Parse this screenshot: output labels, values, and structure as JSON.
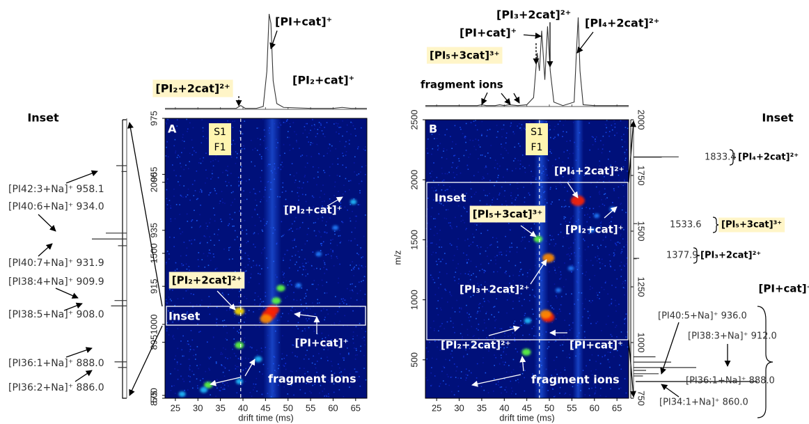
{
  "chart_data": [
    {
      "type": "heatmap",
      "x_label": "drift time (ms)",
      "xlim": [
        22.7,
        67.5
      ],
      "xticks": [
        25,
        30,
        35,
        40,
        45,
        50,
        55,
        60,
        65
      ],
      "ylim": [
        480,
        2450
      ],
      "yticks": [
        500,
        1000,
        1500,
        2000
      ],
      "y2lim": [
        875,
        975
      ],
      "y2ticks": [
        875,
        895,
        915,
        935,
        955,
        975
      ],
      "marker_x": 39.5,
      "spots": {
        "x": [
          39.2,
          45.8,
          46.6,
          45.1,
          47.4,
          48.4,
          39.2,
          43.4,
          39.2,
          32.3,
          31.3,
          26.5,
          64.5,
          56.8,
          52.3,
          60.5
        ],
        "y": [
          1093,
          1068,
          1102,
          1039,
          1166,
          1255,
          853,
          755,
          598,
          573,
          539,
          509,
          1862,
          1495,
          1274,
          1680
        ],
        "intensity": [
          0.6,
          1,
          0.9,
          0.8,
          0.5,
          0.45,
          0.5,
          0.35,
          0.3,
          0.45,
          0.35,
          0.3,
          0.25,
          0.2,
          0.2,
          0.2
        ]
      },
      "drift_trace": {
        "x": [
          22.7,
          30,
          36,
          38.5,
          39.5,
          40.5,
          43,
          44.5,
          45.3,
          45.8,
          46.2,
          46.7,
          47.5,
          49,
          55,
          60,
          62,
          64,
          67.5
        ],
        "values": [
          1,
          1,
          1,
          1,
          4,
          1,
          1,
          3,
          40,
          100,
          90,
          30,
          6,
          2,
          1,
          1,
          2,
          1,
          1
        ],
        "ylim": [
          0,
          100
        ]
      },
      "spectrum": {
        "mz": [
          958.1,
          956,
          934.0,
          931.9,
          929.5,
          909.9,
          908.0,
          888.0,
          886.0
        ],
        "values": [
          30,
          15,
          60,
          100,
          25,
          35,
          45,
          35,
          25
        ],
        "xlim": [
          0,
          100
        ]
      },
      "annotations": [
        {
          "text": "[PI₂+2cat]²⁺",
          "highlight": true
        },
        {
          "text": "[PI+cat]⁺"
        },
        {
          "text": "[PI₂+cat]⁺"
        },
        {
          "text": "A"
        },
        {
          "text": "S1"
        },
        {
          "text": "F1"
        },
        {
          "text": "Inset"
        },
        {
          "text": "[PI₂+cat]⁺"
        },
        {
          "text": "[PI₂+2cat]²⁺",
          "highlight": true
        },
        {
          "text": "[PI+cat]⁺"
        },
        {
          "text": "fragment ions"
        },
        {
          "text": "Inset"
        },
        {
          "text": "[PI42:3+Na]⁺ 958.1"
        },
        {
          "text": "[PI40:6+Na]⁺ 934.0"
        },
        {
          "text": "[PI40:7+Na]⁺ 931.9"
        },
        {
          "text": "[PI38:4+Na]⁺ 909.9"
        },
        {
          "text": "[PI38:5+Na]⁺ 908.0"
        },
        {
          "text": "[PI36:1+Na]⁺ 888.0"
        },
        {
          "text": "[PI36:2+Na]⁺ 886.0"
        }
      ]
    },
    {
      "type": "heatmap",
      "x_label": "drift time (ms)",
      "y_label": "m/z",
      "xlim": [
        22.5,
        67.6
      ],
      "xticks": [
        25,
        30,
        35,
        40,
        45,
        50,
        55,
        60,
        65
      ],
      "ylim": [
        180,
        2500
      ],
      "yticks": [
        500,
        1000,
        1500,
        2000,
        2500
      ],
      "y2lim": [
        750,
        2000
      ],
      "y2ticks": [
        750,
        1000,
        1250,
        1500,
        1750,
        2000
      ],
      "marker_x": 47.8,
      "spots": {
        "x": [
          56.3,
          47.5,
          49.8,
          49.7,
          49.2,
          45.2,
          44.9,
          64,
          59.4,
          54.8,
          52,
          60.5
        ],
        "y": [
          1826,
          1506,
          1349,
          855,
          880,
          826,
          564,
          1756,
          1581,
          1262,
          1080,
          1700
        ],
        "intensity": [
          1,
          0.45,
          0.8,
          0.9,
          0.75,
          0.3,
          0.5,
          0.2,
          0.2,
          0.2,
          0.15,
          0.15
        ]
      },
      "drift_trace": {
        "x": [
          22.5,
          30,
          34,
          35,
          36,
          38,
          39,
          40,
          41,
          43,
          45,
          46.5,
          47.3,
          47.8,
          48.3,
          49,
          49.6,
          50.2,
          51,
          53,
          55.5,
          56,
          56.4,
          56.8,
          57.5,
          60,
          67.6
        ],
        "values": [
          1,
          1,
          1,
          2,
          1,
          1,
          2,
          1,
          2,
          1,
          2,
          10,
          60,
          40,
          85,
          30,
          90,
          40,
          5,
          1,
          5,
          60,
          100,
          40,
          2,
          1,
          1
        ],
        "ylim": [
          0,
          100
        ]
      },
      "spectrum": {
        "mz": [
          1833.4,
          1832,
          1533.6,
          1377.9,
          1376,
          936.0,
          912.0,
          888.0,
          875,
          860.0,
          850
        ],
        "values": [
          72,
          45,
          6,
          9,
          5,
          35,
          60,
          100,
          20,
          40,
          15
        ],
        "xlim": [
          0,
          100
        ]
      },
      "annotations": [
        {
          "text": "[PI₃+2cat]²⁺"
        },
        {
          "text": "[PI+cat]⁺"
        },
        {
          "text": "[PI₄+2cat]²⁺"
        },
        {
          "text": "[PI₅+3cat]³⁺",
          "highlight": true
        },
        {
          "text": "fragment ions"
        },
        {
          "text": "B"
        },
        {
          "text": "S1"
        },
        {
          "text": "F1"
        },
        {
          "text": "Inset"
        },
        {
          "text": "[PI₄+2cat]²⁺"
        },
        {
          "text": "[PI₅+3cat]³⁺",
          "highlight": true
        },
        {
          "text": "[PI₂+cat]⁺"
        },
        {
          "text": "[PI₃+2cat]²⁺"
        },
        {
          "text": "[PI₂+2cat]²⁺"
        },
        {
          "text": "[PI+cat]⁺"
        },
        {
          "text": "fragment ions"
        },
        {
          "text": "Inset"
        },
        {
          "text": "1833.4"
        },
        {
          "text": "[PI₄+2cat]²⁺"
        },
        {
          "text": "1533.6"
        },
        {
          "text": "[PI₅+3cat]³⁺",
          "highlight": true
        },
        {
          "text": "1377.9"
        },
        {
          "text": "[PI₃+2cat]²⁺"
        },
        {
          "text": "[PI+cat]⁺"
        },
        {
          "text": "[PI40:5+Na]⁺ 936.0"
        },
        {
          "text": "[PI38:3+Na]⁺ 912.0"
        },
        {
          "text": "[PI36:1+Na]⁺ 888.0"
        },
        {
          "text": "[PI34:1+Na]⁺ 860.0"
        }
      ]
    }
  ]
}
